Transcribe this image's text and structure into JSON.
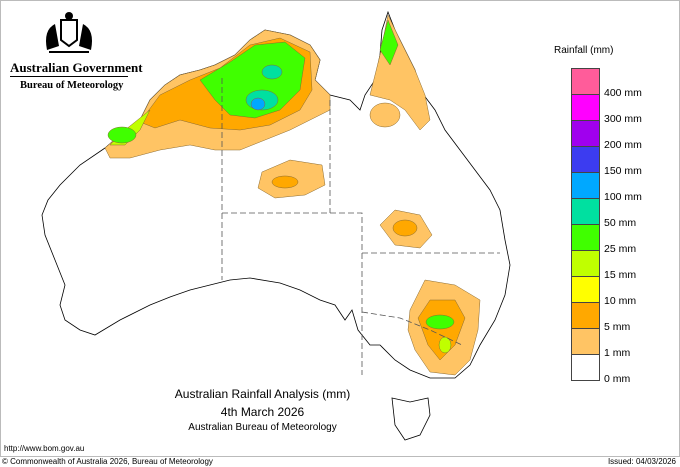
{
  "header": {
    "government": "Australian Government",
    "agency": "Bureau of Meteorology"
  },
  "map": {
    "title": "Australian Rainfall Analysis (mm)",
    "date": "4th March 2026",
    "subtitle": "Australian Bureau of Meteorology"
  },
  "legend": {
    "title": "Rainfall (mm)",
    "colors": [
      "#ff5c9a",
      "#ff00ff",
      "#a000ee",
      "#3c3cf0",
      "#00a8ff",
      "#00e0a0",
      "#40ff00",
      "#c0ff00",
      "#ffff00",
      "#ffa800",
      "#ffc464",
      "#ffffff"
    ],
    "labels": [
      "400 mm",
      "300 mm",
      "200 mm",
      "150 mm",
      "100 mm",
      "50 mm",
      "25 mm",
      "15 mm",
      "10 mm",
      "5 mm",
      "1 mm",
      "0 mm"
    ]
  },
  "footer": {
    "url": "http://www.bom.gov.au",
    "copyright": "© Commonwealth of Australia 2026, Bureau of Meteorology",
    "issued": "Issued: 04/03/2026"
  }
}
